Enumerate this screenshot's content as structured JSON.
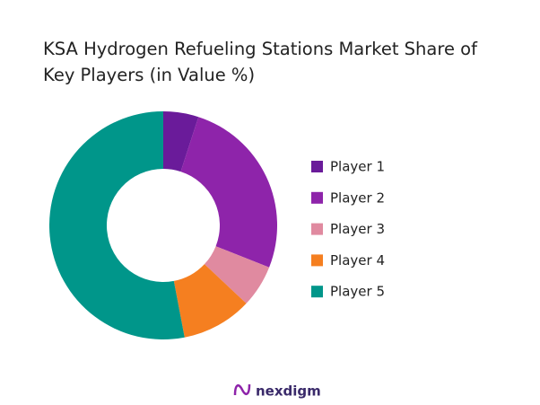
{
  "chart_data": {
    "type": "donut",
    "title": "KSA Hydrogen Refueling Stations Market Share of Key Players (in Value %)",
    "categories": [
      "Player 1",
      "Player 2",
      "Player 3",
      "Player 4",
      "Player 5"
    ],
    "values": [
      5,
      26,
      6,
      10,
      53
    ],
    "colors": [
      "#6a1b9a",
      "#8e24aa",
      "#e08aa0",
      "#f57f20",
      "#00968a"
    ],
    "legend": "right"
  },
  "brand": "nexdigm"
}
